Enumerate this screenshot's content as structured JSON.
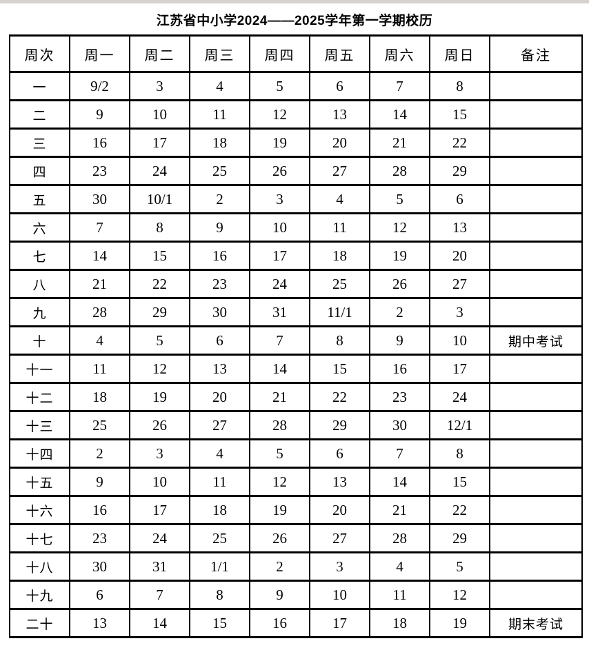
{
  "page": {
    "title": "江苏省中小学2024——2025学年第一学期校历"
  },
  "colors": {
    "background": "#ffffff",
    "text": "#000000",
    "table_border": "#000000",
    "top_strip": "#d6d3ce"
  },
  "table": {
    "headers": [
      "周次",
      "周一",
      "周二",
      "周三",
      "周四",
      "周五",
      "周六",
      "周日",
      "备注"
    ],
    "rows": [
      {
        "week": "一",
        "days": [
          "9/2",
          "3",
          "4",
          "5",
          "6",
          "7",
          "8"
        ],
        "note": ""
      },
      {
        "week": "二",
        "days": [
          "9",
          "10",
          "11",
          "12",
          "13",
          "14",
          "15"
        ],
        "note": ""
      },
      {
        "week": "三",
        "days": [
          "16",
          "17",
          "18",
          "19",
          "20",
          "21",
          "22"
        ],
        "note": ""
      },
      {
        "week": "四",
        "days": [
          "23",
          "24",
          "25",
          "26",
          "27",
          "28",
          "29"
        ],
        "note": ""
      },
      {
        "week": "五",
        "days": [
          "30",
          "10/1",
          "2",
          "3",
          "4",
          "5",
          "6"
        ],
        "note": ""
      },
      {
        "week": "六",
        "days": [
          "7",
          "8",
          "9",
          "10",
          "11",
          "12",
          "13"
        ],
        "note": ""
      },
      {
        "week": "七",
        "days": [
          "14",
          "15",
          "16",
          "17",
          "18",
          "19",
          "20"
        ],
        "note": ""
      },
      {
        "week": "八",
        "days": [
          "21",
          "22",
          "23",
          "24",
          "25",
          "26",
          "27"
        ],
        "note": ""
      },
      {
        "week": "九",
        "days": [
          "28",
          "29",
          "30",
          "31",
          "11/1",
          "2",
          "3"
        ],
        "note": ""
      },
      {
        "week": "十",
        "days": [
          "4",
          "5",
          "6",
          "7",
          "8",
          "9",
          "10"
        ],
        "note": "期中考试"
      },
      {
        "week": "十一",
        "days": [
          "11",
          "12",
          "13",
          "14",
          "15",
          "16",
          "17"
        ],
        "note": ""
      },
      {
        "week": "十二",
        "days": [
          "18",
          "19",
          "20",
          "21",
          "22",
          "23",
          "24"
        ],
        "note": ""
      },
      {
        "week": "十三",
        "days": [
          "25",
          "26",
          "27",
          "28",
          "29",
          "30",
          "12/1"
        ],
        "note": ""
      },
      {
        "week": "十四",
        "days": [
          "2",
          "3",
          "4",
          "5",
          "6",
          "7",
          "8"
        ],
        "note": ""
      },
      {
        "week": "十五",
        "days": [
          "9",
          "10",
          "11",
          "12",
          "13",
          "14",
          "15"
        ],
        "note": ""
      },
      {
        "week": "十六",
        "days": [
          "16",
          "17",
          "18",
          "19",
          "20",
          "21",
          "22"
        ],
        "note": ""
      },
      {
        "week": "十七",
        "days": [
          "23",
          "24",
          "25",
          "26",
          "27",
          "28",
          "29"
        ],
        "note": ""
      },
      {
        "week": "十八",
        "days": [
          "30",
          "31",
          "1/1",
          "2",
          "3",
          "4",
          "5"
        ],
        "note": ""
      },
      {
        "week": "十九",
        "days": [
          "6",
          "7",
          "8",
          "9",
          "10",
          "11",
          "12"
        ],
        "note": ""
      },
      {
        "week": "二十",
        "days": [
          "13",
          "14",
          "15",
          "16",
          "17",
          "18",
          "19"
        ],
        "note": "期末考试"
      }
    ]
  }
}
